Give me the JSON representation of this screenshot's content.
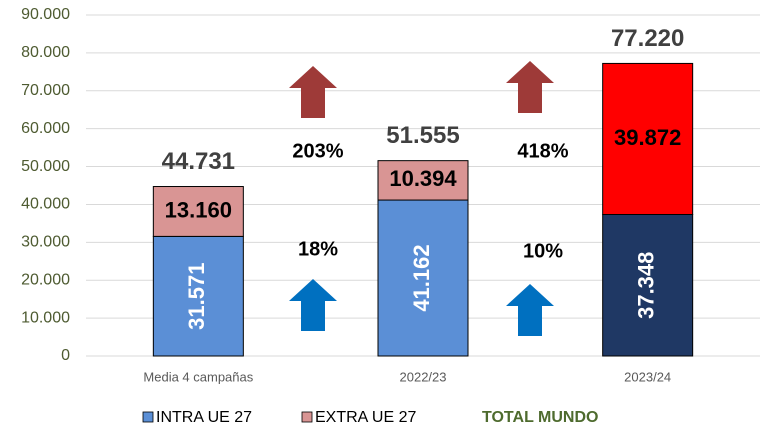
{
  "chart_data": {
    "type": "stacked_bar",
    "categories": [
      "Media 4 campañas",
      "2022/23",
      "2023/24"
    ],
    "series": [
      {
        "name": "INTRA UE 27",
        "color": "#5b8fd6",
        "colors": [
          "#5b8fd6",
          "#5b8fd6",
          "#1f3864"
        ],
        "values": [
          31571,
          41162,
          37348
        ],
        "value_labels": [
          "31.571",
          "41.162",
          "37.348"
        ]
      },
      {
        "name": "EXTRA UE 27",
        "color": "#d99594",
        "colors": [
          "#d99594",
          "#d99594",
          "#ff0000"
        ],
        "values": [
          13160,
          10394,
          39872
        ],
        "value_labels": [
          "13.160",
          "10.394",
          "39.872"
        ]
      }
    ],
    "totals": {
      "name": "TOTAL MUNDO",
      "color": "#4e6b2e",
      "values": [
        44731,
        51555,
        77220
      ],
      "value_labels": [
        "44.731",
        "51.555",
        "77.220"
      ]
    },
    "annotations": [
      {
        "text": "203%",
        "color": "#9e3a38"
      },
      {
        "text": "18%",
        "color": "#0070c0"
      },
      {
        "text": "418%",
        "color": "#9e3a38"
      },
      {
        "text": "10%",
        "color": "#0070c0"
      }
    ],
    "ylim": [
      0,
      90000
    ],
    "yticks": [
      0,
      {
        "value": 10000,
        "label": "10.000"
      },
      {
        "value": 20000,
        "label": "20.000"
      },
      {
        "value": 30000,
        "label": "30.000"
      },
      {
        "value": 40000,
        "label": "40.000"
      },
      {
        "value": 50000,
        "label": "50.000"
      },
      {
        "value": 60000,
        "label": "60.000"
      },
      {
        "value": 70000,
        "label": "70.000"
      },
      {
        "value": 80000,
        "label": "80.000"
      },
      {
        "value": 90000,
        "label": "90.000"
      }
    ],
    "grid": true
  }
}
